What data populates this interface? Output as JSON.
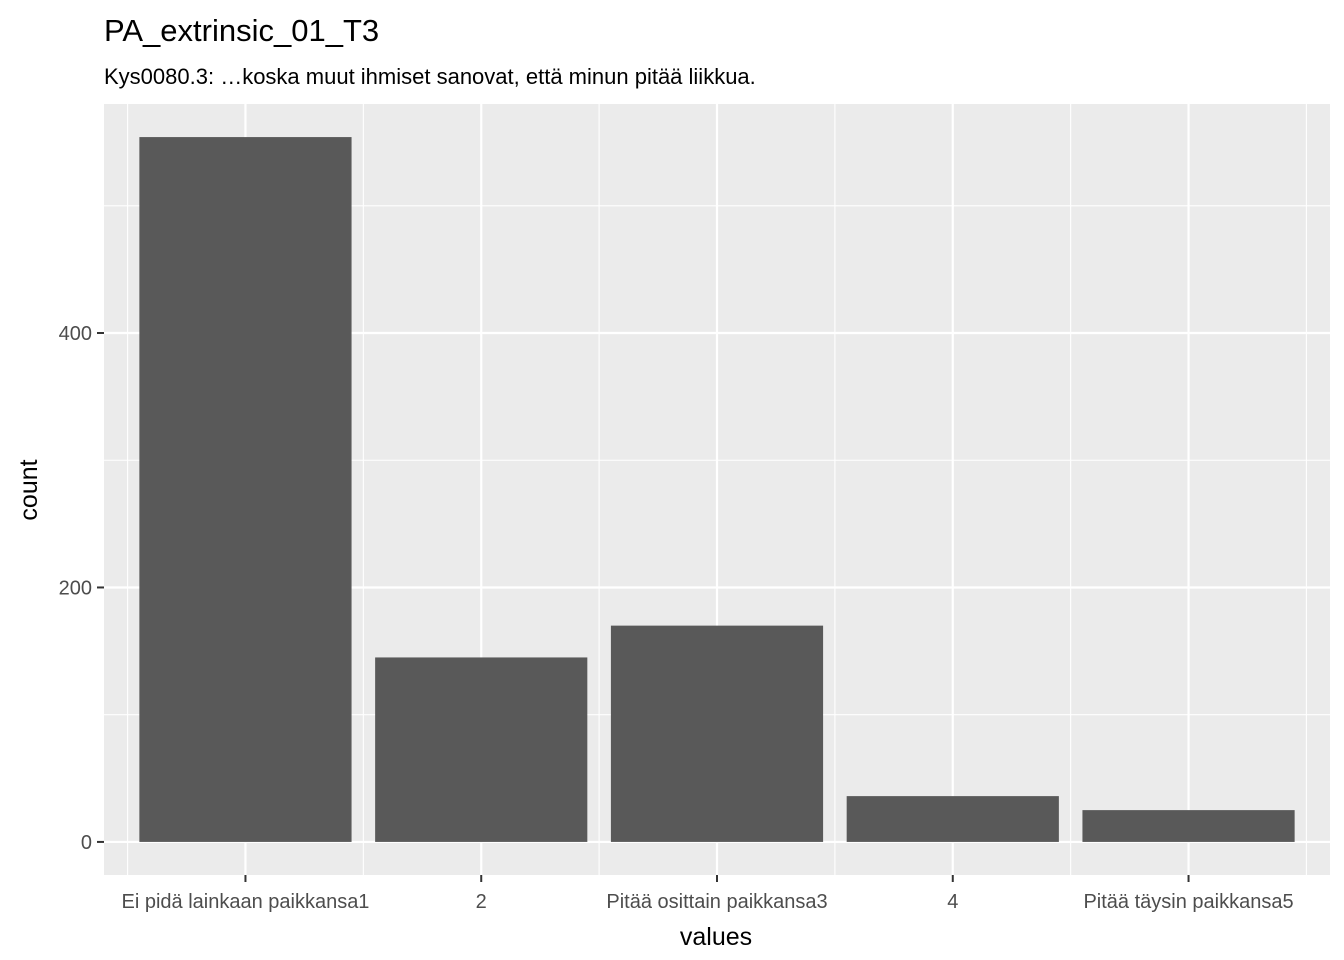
{
  "chart_data": {
    "type": "bar",
    "title": "PA_extrinsic_01_T3",
    "subtitle": "Kys0080.3: …koska muut ihmiset sanovat, että minun pitää liikkua.",
    "xlabel": "values",
    "ylabel": "count",
    "categories": [
      "Ei pidä lainkaan paikkansa1",
      "2",
      "Pitää osittain paikkansa3",
      "4",
      "Pitää täysin paikkansa5"
    ],
    "values": [
      554,
      145,
      170,
      36,
      25
    ],
    "ylim": [
      -26,
      580
    ],
    "yticks": [
      0,
      200,
      400
    ],
    "grid": true,
    "panel_background": "#ebebeb",
    "bar_color": "#595959",
    "grid_color": "#ffffff"
  }
}
